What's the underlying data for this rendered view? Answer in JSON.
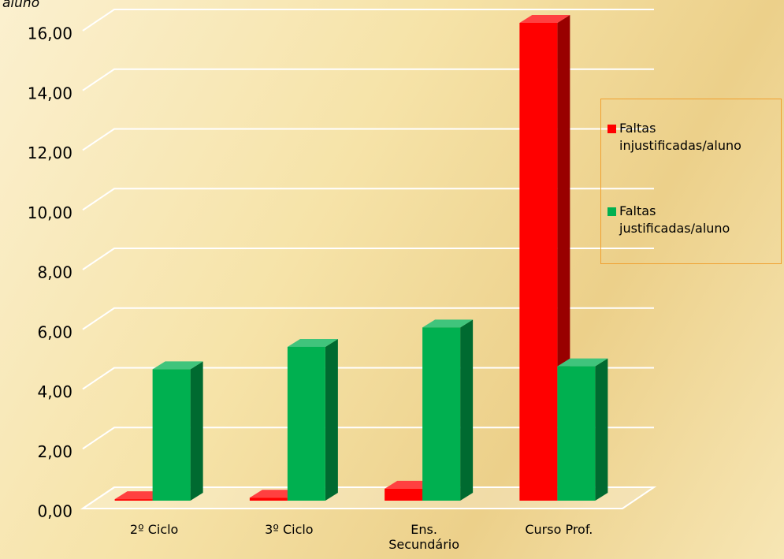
{
  "chart_data": {
    "type": "bar3d",
    "y_label": "aluno",
    "categories": [
      "2º Ciclo",
      "3º Ciclo",
      "Ens. Secundário",
      "Curso Prof."
    ],
    "series": [
      {
        "name": "Faltas injustificadas/aluno",
        "color": "#ff0000",
        "values": [
          0.05,
          0.1,
          0.4,
          16.0
        ]
      },
      {
        "name": "Faltas justificadas/aluno",
        "color": "#00b050",
        "values": [
          4.4,
          5.15,
          5.8,
          4.5
        ]
      }
    ],
    "ylim": [
      0,
      16
    ],
    "yticks": [
      {
        "value": 0,
        "label": "0,00"
      },
      {
        "value": 2,
        "label": "2,00"
      },
      {
        "value": 4,
        "label": "4,00"
      },
      {
        "value": 6,
        "label": "6,00"
      },
      {
        "value": 8,
        "label": "8,00"
      },
      {
        "value": 10,
        "label": "10,00"
      },
      {
        "value": 12,
        "label": "12,00"
      },
      {
        "value": 14,
        "label": "14,00"
      },
      {
        "value": 16,
        "label": "16,00"
      }
    ],
    "grid": true
  }
}
